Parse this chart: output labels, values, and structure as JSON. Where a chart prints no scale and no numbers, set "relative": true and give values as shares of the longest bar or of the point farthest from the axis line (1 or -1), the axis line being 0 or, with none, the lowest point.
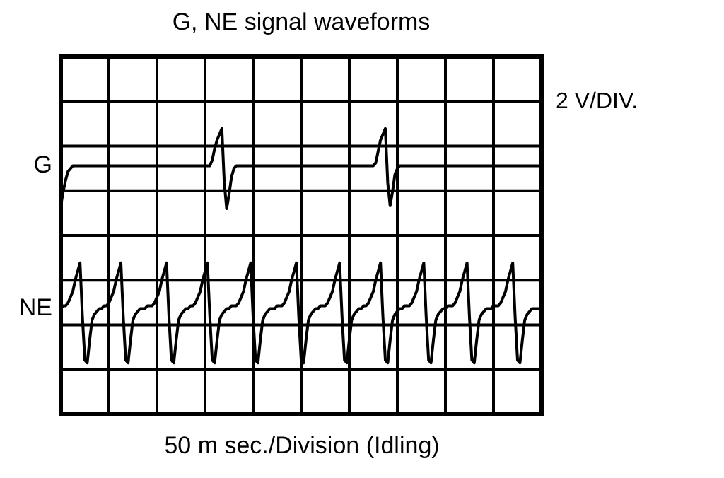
{
  "chart_data": {
    "type": "line",
    "title": "G, NE signal waveforms",
    "xlabel": "50 m sec./Division (Idling)",
    "annotations": [
      "2 V/DIV."
    ],
    "relative": true,
    "grid": true,
    "legend": false,
    "line_style": "solid",
    "categories": [
      null,
      null,
      null,
      null,
      null,
      null,
      null,
      null,
      null,
      null,
      null,
      null,
      null,
      null,
      null,
      null,
      null,
      null,
      null,
      null,
      null,
      null,
      null,
      null,
      null,
      null,
      null,
      null,
      null,
      null,
      null,
      null,
      null,
      null,
      null,
      null,
      null,
      null,
      null,
      null,
      null,
      null,
      null,
      null,
      null,
      null,
      null,
      null,
      null,
      null,
      null,
      null,
      null,
      null,
      null,
      null,
      null,
      null,
      null,
      null,
      null,
      null,
      null,
      null,
      null,
      null,
      null,
      null,
      null,
      null,
      null,
      null,
      null,
      null,
      null,
      null,
      null,
      null,
      null,
      null,
      null,
      null,
      null,
      null,
      null,
      null,
      null,
      null,
      null,
      null,
      null,
      null,
      null,
      null,
      null,
      null,
      null,
      null,
      null,
      null,
      null,
      null,
      null,
      null,
      null,
      null,
      null,
      null,
      null,
      null,
      null,
      null,
      null,
      null,
      null,
      null,
      null,
      null,
      null,
      null,
      null,
      null,
      null,
      null,
      null,
      null,
      null,
      null,
      null,
      null,
      null,
      null,
      null,
      null,
      null,
      null,
      null,
      null,
      null,
      null,
      null,
      null,
      null,
      null,
      null,
      null,
      null,
      null,
      null,
      null,
      null,
      null,
      null,
      null,
      null,
      null,
      null,
      null,
      null,
      null,
      null,
      null,
      null,
      null,
      null,
      null,
      null,
      null,
      null,
      null,
      null,
      null,
      null,
      null,
      null,
      null,
      null,
      null,
      null,
      null,
      null,
      null,
      null,
      null,
      null,
      null,
      null,
      null,
      null,
      null,
      null,
      null,
      null,
      null,
      null,
      null,
      null,
      null,
      null,
      null,
      null
    ],
    "series": [
      {
        "name": "G",
        "color": "#000000",
        "values": [
          0.73,
          0.78,
          0.82,
          0.85,
          0.86,
          0.87,
          0.87,
          0.87,
          0.87,
          0.87,
          0.87,
          0.87,
          0.87,
          0.87,
          0.87,
          0.87,
          0.87,
          0.87,
          0.87,
          0.87,
          0.87,
          0.87,
          0.87,
          0.87,
          0.87,
          0.87,
          0.87,
          0.87,
          0.87,
          0.87,
          0.87,
          0.87,
          0.87,
          0.87,
          0.87,
          0.87,
          0.87,
          0.87,
          0.87,
          0.87,
          0.87,
          0.87,
          0.87,
          0.87,
          0.87,
          0.87,
          0.87,
          0.87,
          0.87,
          0.87,
          0.87,
          0.87,
          0.87,
          0.87,
          0.87,
          0.87,
          0.87,
          0.87,
          0.87,
          0.87,
          0.87,
          0.87,
          0.87,
          0.89,
          0.93,
          0.96,
          0.98,
          1,
          0.81,
          0.72,
          0.77,
          0.83,
          0.86,
          0.87,
          0.87,
          0.87,
          0.87,
          0.87,
          0.87,
          0.87,
          0.87,
          0.87,
          0.87,
          0.87,
          0.87,
          0.87,
          0.87,
          0.87,
          0.87,
          0.87,
          0.87,
          0.87,
          0.87,
          0.87,
          0.87,
          0.87,
          0.87,
          0.87,
          0.87,
          0.87,
          0.87,
          0.87,
          0.87,
          0.87,
          0.87,
          0.87,
          0.87,
          0.87,
          0.87,
          0.87,
          0.87,
          0.87,
          0.87,
          0.87,
          0.87,
          0.87,
          0.87,
          0.87,
          0.87,
          0.87,
          0.87,
          0.87,
          0.87,
          0.87,
          0.87,
          0.87,
          0.87,
          0.87,
          0.87,
          0.87,
          0.87,
          0.88,
          0.92,
          0.96,
          0.98,
          1,
          0.81,
          0.73,
          0.78,
          0.84,
          0.86,
          0.87,
          0.87,
          0.87,
          0.87,
          0.87,
          0.87,
          0.87,
          0.87,
          0.87,
          0.87,
          0.87,
          0.87,
          0.87,
          0.87,
          0.87,
          0.87,
          0.87,
          0.87,
          0.87,
          0.87,
          0.87,
          0.87,
          0.87,
          0.87,
          0.87,
          0.87,
          0.87,
          0.87,
          0.87,
          0.87,
          0.87,
          0.87,
          0.87,
          0.87,
          0.87,
          0.87,
          0.87,
          0.87,
          0.87,
          0.87,
          0.87,
          0.87,
          0.87,
          0.87,
          0.87,
          0.87,
          0.87,
          0.87,
          0.87,
          0.87,
          0.87,
          0.87,
          0.87,
          0.87,
          0.87,
          0.87,
          0.87,
          0.87,
          0.87,
          0.87
        ]
      },
      {
        "name": "NE",
        "color": "#000000",
        "values": [
          0.37,
          0.38,
          0.38,
          0.39,
          0.41,
          0.43,
          0.47,
          0.5,
          0.53,
          0.34,
          0.19,
          0.18,
          0.26,
          0.33,
          0.35,
          0.36,
          0.37,
          0.37,
          0.38,
          0.38,
          0.39,
          0.41,
          0.43,
          0.47,
          0.5,
          0.53,
          0.34,
          0.19,
          0.18,
          0.26,
          0.33,
          0.35,
          0.36,
          0.37,
          0.37,
          0.37,
          0.38,
          0.38,
          0.38,
          0.39,
          0.41,
          0.43,
          0.47,
          0.5,
          0.53,
          0.34,
          0.19,
          0.18,
          0.26,
          0.33,
          0.35,
          0.36,
          0.37,
          0.37,
          0.38,
          0.38,
          0.39,
          0.41,
          0.43,
          0.47,
          0.5,
          0.53,
          0.34,
          0.19,
          0.18,
          0.26,
          0.33,
          0.35,
          0.36,
          0.37,
          0.37,
          0.38,
          0.38,
          0.38,
          0.39,
          0.41,
          0.43,
          0.47,
          0.5,
          0.53,
          0.34,
          0.19,
          0.18,
          0.26,
          0.33,
          0.35,
          0.36,
          0.37,
          0.37,
          0.37,
          0.38,
          0.38,
          0.38,
          0.39,
          0.41,
          0.43,
          0.47,
          0.5,
          0.53,
          0.34,
          0.19,
          0.18,
          0.26,
          0.33,
          0.35,
          0.36,
          0.37,
          0.37,
          0.38,
          0.38,
          0.38,
          0.39,
          0.41,
          0.43,
          0.47,
          0.5,
          0.53,
          0.34,
          0.19,
          0.18,
          0.26,
          0.33,
          0.35,
          0.36,
          0.37,
          0.37,
          0.38,
          0.38,
          0.39,
          0.41,
          0.43,
          0.47,
          0.5,
          0.53,
          0.34,
          0.19,
          0.18,
          0.26,
          0.33,
          0.35,
          0.36,
          0.37,
          0.37,
          0.38,
          0.38,
          0.38,
          0.39,
          0.41,
          0.43,
          0.47,
          0.5,
          0.53,
          0.34,
          0.19,
          0.18,
          0.26,
          0.33,
          0.35,
          0.36,
          0.37,
          0.37,
          0.38,
          0.38,
          0.38,
          0.39,
          0.41,
          0.43,
          0.47,
          0.5,
          0.53,
          0.34,
          0.19,
          0.18,
          0.26,
          0.33,
          0.35,
          0.36,
          0.37,
          0.37,
          0.37,
          0.38,
          0.38,
          0.38,
          0.39,
          0.41,
          0.43,
          0.47,
          0.5,
          0.53,
          0.34,
          0.19,
          0.18,
          0.26,
          0.33,
          0.35,
          0.36,
          0.37,
          0.37,
          0.37,
          0.37,
          0.37
        ]
      }
    ]
  }
}
